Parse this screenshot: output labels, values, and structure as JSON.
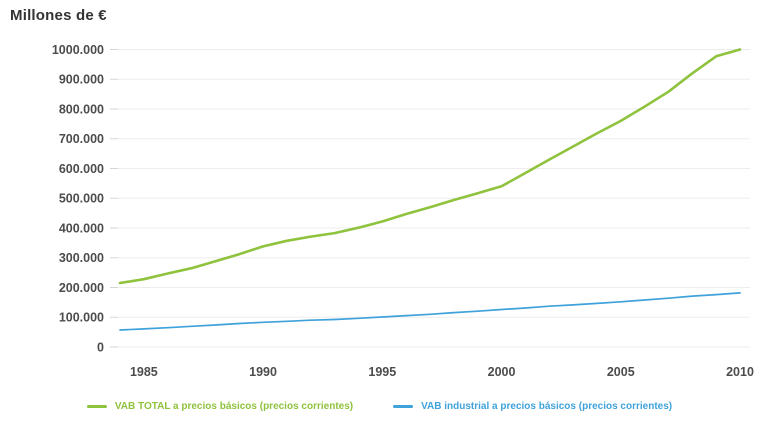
{
  "chart_data": {
    "type": "line",
    "title": "Millones de €",
    "xlabel": "",
    "ylabel": "Millones de €",
    "x": [
      1984,
      1985,
      1986,
      1987,
      1988,
      1989,
      1990,
      1991,
      1992,
      1993,
      1994,
      1995,
      1996,
      1997,
      1998,
      1999,
      2000,
      2001,
      2002,
      2003,
      2004,
      2005,
      2006,
      2007,
      2008,
      2009,
      2010
    ],
    "x_ticks": [
      1985,
      1990,
      1995,
      2000,
      2005,
      2010
    ],
    "x_tick_labels": [
      "1985",
      "1990",
      "1995",
      "2000",
      "2005",
      "2010"
    ],
    "ylim": [
      0,
      1000000
    ],
    "y_ticks": [
      0,
      100000,
      200000,
      300000,
      400000,
      500000,
      600000,
      700000,
      800000,
      900000,
      1000000
    ],
    "y_tick_labels": [
      "0",
      "100.000",
      "200.000",
      "300.000",
      "400.000",
      "500.000",
      "600.000",
      "700.000",
      "800.000",
      "900.000",
      "1000.000"
    ],
    "grid": true,
    "legend_position": "bottom",
    "series": [
      {
        "name": "VAB TOTAL a precios básicos (precios corrientes)",
        "color": "#8fc23d",
        "stroke_width": 2.6,
        "values": [
          215000,
          228000,
          247000,
          265000,
          288000,
          312000,
          338000,
          357000,
          371000,
          383000,
          401000,
          422000,
          447000,
          470000,
          494000,
          517000,
          540000,
          585000,
          630000,
          674000,
          718000,
          760000,
          808000,
          858000,
          920000,
          977000,
          1000000
        ]
      },
      {
        "name": "VAB industrial a precios básicos (precios corrientes)",
        "color": "#3fa2db",
        "stroke_width": 1.7,
        "values": [
          57000,
          61000,
          65000,
          69500,
          74000,
          79000,
          83000,
          86500,
          90000,
          92500,
          96500,
          101000,
          105500,
          110000,
          115500,
          120500,
          126000,
          131000,
          137000,
          141500,
          146500,
          152000,
          158000,
          164000,
          171000,
          176000,
          182000
        ]
      }
    ],
    "colors": {
      "grid": "#ededed",
      "tick": "#d6d6d6",
      "axis_text": "#4c4c4c",
      "title_text": "#333333",
      "background": "#ffffff"
    }
  }
}
